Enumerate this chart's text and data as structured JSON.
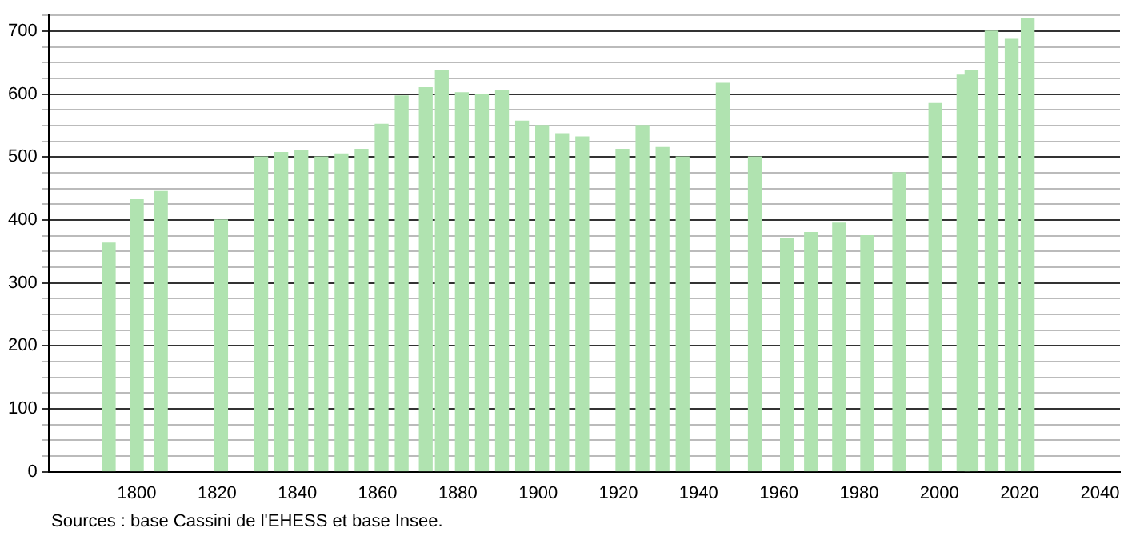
{
  "chart_data": {
    "type": "bar",
    "x": [
      1793,
      1800,
      1806,
      1821,
      1831,
      1836,
      1841,
      1846,
      1851,
      1856,
      1861,
      1866,
      1872,
      1876,
      1881,
      1886,
      1891,
      1896,
      1901,
      1906,
      1911,
      1921,
      1926,
      1931,
      1936,
      1946,
      1954,
      1962,
      1968,
      1975,
      1982,
      1990,
      1999,
      2006,
      2008,
      2013,
      2018,
      2022
    ],
    "values": [
      363,
      432,
      445,
      400,
      500,
      507,
      510,
      500,
      505,
      512,
      552,
      597,
      610,
      637,
      602,
      600,
      605,
      557,
      550,
      537,
      532,
      512,
      550,
      515,
      500,
      617,
      500,
      370,
      380,
      395,
      375,
      475,
      585,
      630,
      637,
      700,
      687,
      720
    ],
    "color": "#b0e3b0",
    "xlim": [
      1778,
      2045
    ],
    "xticks": [
      1800,
      1820,
      1840,
      1860,
      1880,
      1900,
      1920,
      1940,
      1960,
      1980,
      2000,
      2020,
      2040
    ],
    "ylim": [
      0,
      725
    ],
    "yticks": [
      0,
      {
        "value": 25,
        "label": null
      },
      {
        "value": 50,
        "label": null
      },
      {
        "value": 75,
        "label": null
      },
      100,
      {
        "value": 125,
        "label": null
      },
      {
        "value": 150,
        "label": null
      },
      {
        "value": 175,
        "label": null
      },
      200,
      {
        "value": 225,
        "label": null
      },
      {
        "value": 250,
        "label": null
      },
      {
        "value": 275,
        "label": null
      },
      300,
      {
        "value": 325,
        "label": null
      },
      {
        "value": 350,
        "label": null
      },
      {
        "value": 375,
        "label": null
      },
      400,
      {
        "value": 425,
        "label": null
      },
      {
        "value": 450,
        "label": null
      },
      {
        "value": 475,
        "label": null
      },
      500,
      {
        "value": 525,
        "label": null
      },
      {
        "value": 550,
        "label": null
      },
      {
        "value": 575,
        "label": null
      },
      600,
      {
        "value": 625,
        "label": null
      },
      {
        "value": 650,
        "label": null
      },
      {
        "value": 675,
        "label": null
      },
      700,
      {
        "value": 725,
        "label": null
      }
    ],
    "grid": "y",
    "annotations": [
      "Sources : base Cassini de l'EHESS et base Insee."
    ]
  }
}
